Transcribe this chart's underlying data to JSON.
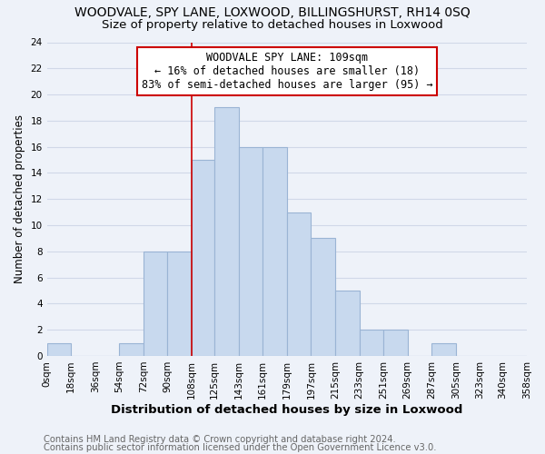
{
  "title": "WOODVALE, SPY LANE, LOXWOOD, BILLINGSHURST, RH14 0SQ",
  "subtitle": "Size of property relative to detached houses in Loxwood",
  "xlabel": "Distribution of detached houses by size in Loxwood",
  "ylabel": "Number of detached properties",
  "bin_edges": [
    0,
    18,
    36,
    54,
    72,
    90,
    108,
    125,
    143,
    161,
    179,
    197,
    215,
    233,
    251,
    269,
    287,
    305,
    323,
    340,
    358
  ],
  "bin_labels": [
    "0sqm",
    "18sqm",
    "36sqm",
    "54sqm",
    "72sqm",
    "90sqm",
    "108sqm",
    "125sqm",
    "143sqm",
    "161sqm",
    "179sqm",
    "197sqm",
    "215sqm",
    "233sqm",
    "251sqm",
    "269sqm",
    "287sqm",
    "305sqm",
    "323sqm",
    "340sqm",
    "358sqm"
  ],
  "counts": [
    1,
    0,
    0,
    1,
    8,
    8,
    15,
    19,
    16,
    16,
    11,
    9,
    5,
    2,
    2,
    0,
    1,
    0,
    0,
    0
  ],
  "bar_color": "#c8d9ee",
  "bar_edge_color": "#9ab4d4",
  "vline_x": 108,
  "vline_color": "#cc0000",
  "annotation_text": "WOODVALE SPY LANE: 109sqm\n← 16% of detached houses are smaller (18)\n83% of semi-detached houses are larger (95) →",
  "annotation_box_color": "white",
  "annotation_box_edge_color": "#cc0000",
  "ylim": [
    0,
    24
  ],
  "yticks": [
    0,
    2,
    4,
    6,
    8,
    10,
    12,
    14,
    16,
    18,
    20,
    22,
    24
  ],
  "footer_line1": "Contains HM Land Registry data © Crown copyright and database right 2024.",
  "footer_line2": "Contains public sector information licensed under the Open Government Licence v3.0.",
  "bg_color": "#eef2f9",
  "grid_color": "#d0d8e8",
  "title_fontsize": 10,
  "subtitle_fontsize": 9.5,
  "xlabel_fontsize": 9.5,
  "ylabel_fontsize": 8.5,
  "tick_fontsize": 7.5,
  "annotation_fontsize": 8.5,
  "footer_fontsize": 7.2
}
